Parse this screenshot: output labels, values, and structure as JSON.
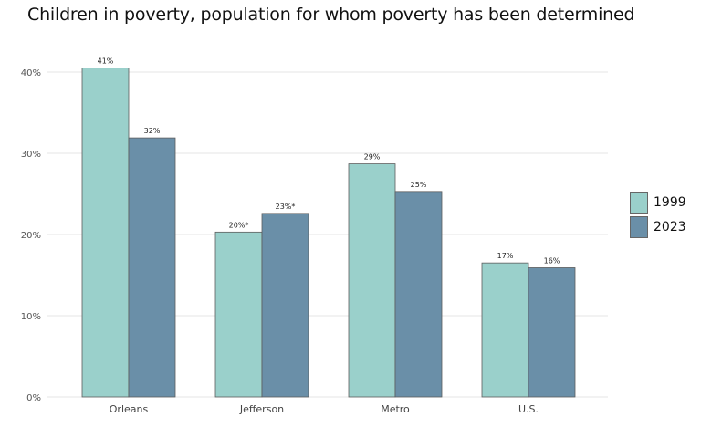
{
  "title": "Children in poverty, population for whom poverty has been determined",
  "colors": {
    "series_1999": "#9ad0cb",
    "series_2023": "#6a8fa8",
    "grid": "#e6e6e6",
    "bar_stroke": "#5d5d5d"
  },
  "legend": [
    {
      "label": "1999"
    },
    {
      "label": "2023"
    }
  ],
  "chart_data": {
    "type": "bar",
    "title": "Children in poverty, population for whom poverty has been determined",
    "xlabel": "",
    "ylabel": "",
    "categories": [
      "Orleans",
      "Jefferson",
      "Metro",
      "U.S."
    ],
    "series": [
      {
        "name": "1999",
        "values": [
          0.405,
          0.203,
          0.287,
          0.165
        ],
        "labels": [
          "41%",
          "20%*",
          "29%",
          "17%"
        ]
      },
      {
        "name": "2023",
        "values": [
          0.319,
          0.226,
          0.253,
          0.159
        ],
        "labels": [
          "32%",
          "23%*",
          "25%",
          "16%"
        ]
      }
    ],
    "ylim": [
      0,
      0.4
    ],
    "yticks": [
      0,
      0.1,
      0.2,
      0.3,
      0.4
    ],
    "ytick_labels": [
      "0%",
      "10%",
      "20%",
      "30%",
      "40%"
    ],
    "grid": true,
    "legend_position": "right"
  }
}
